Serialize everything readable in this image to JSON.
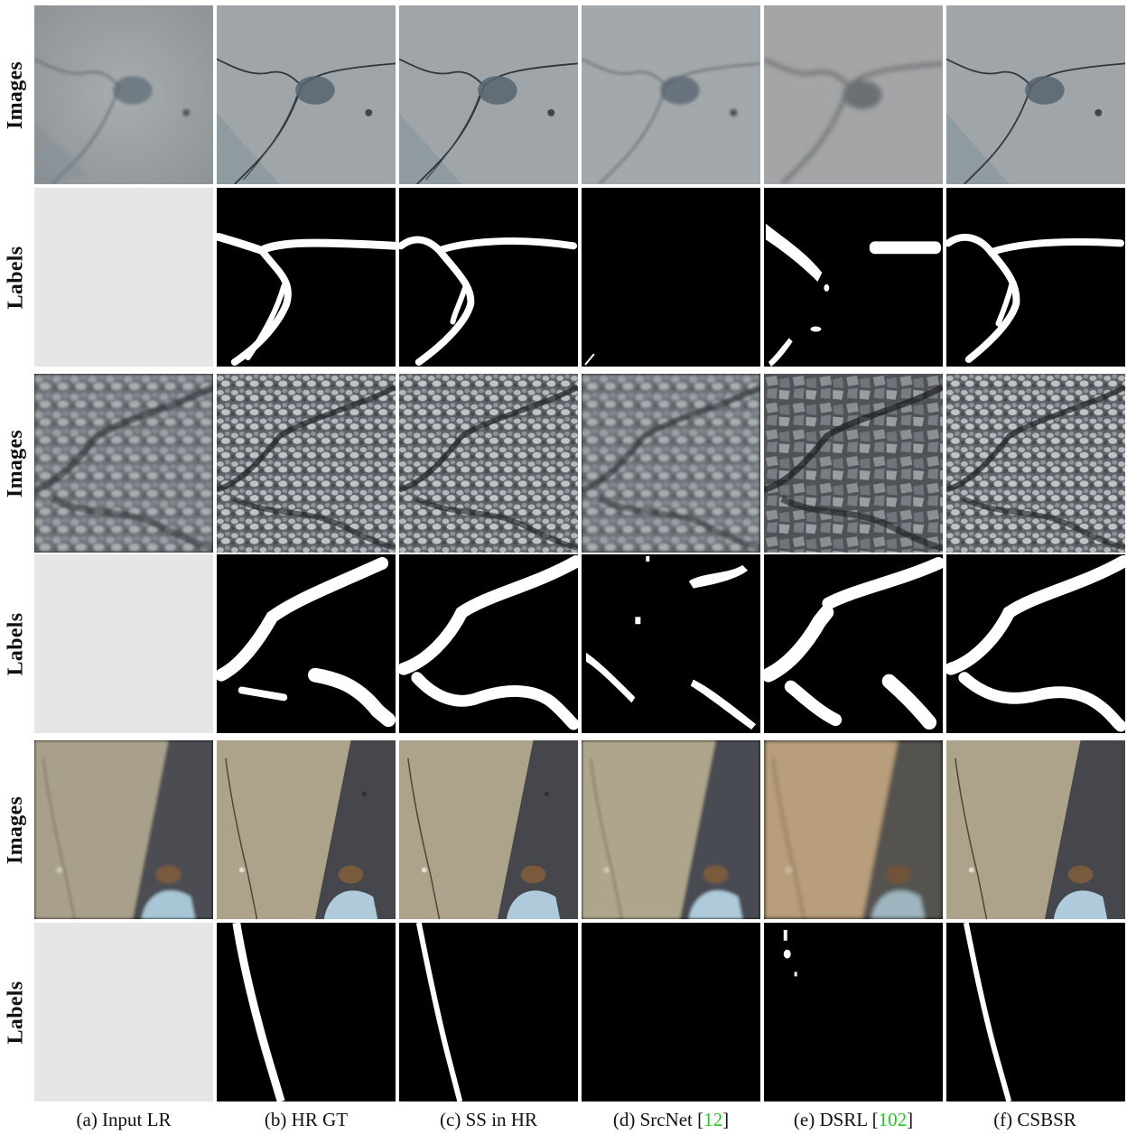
{
  "row_labels": [
    "Images",
    "Labels",
    "Images",
    "Labels",
    "Images",
    "Labels"
  ],
  "columns": [
    {
      "text": "(a) Input LR",
      "ref": ""
    },
    {
      "text": "(b) HR GT",
      "ref": ""
    },
    {
      "text": "(c) SS in HR",
      "ref": ""
    },
    {
      "text": "(d) SrcNet [",
      "ref": "12",
      "close": "]"
    },
    {
      "text": "(e) DSRL [",
      "ref": "102",
      "close": "]"
    },
    {
      "text": "(f) CSBSR",
      "ref": ""
    }
  ],
  "colors": {
    "citation": "#22c922",
    "empty_cell": "#e6e6e6",
    "label_fg": "#ffffff",
    "label_bg": "#000000"
  }
}
